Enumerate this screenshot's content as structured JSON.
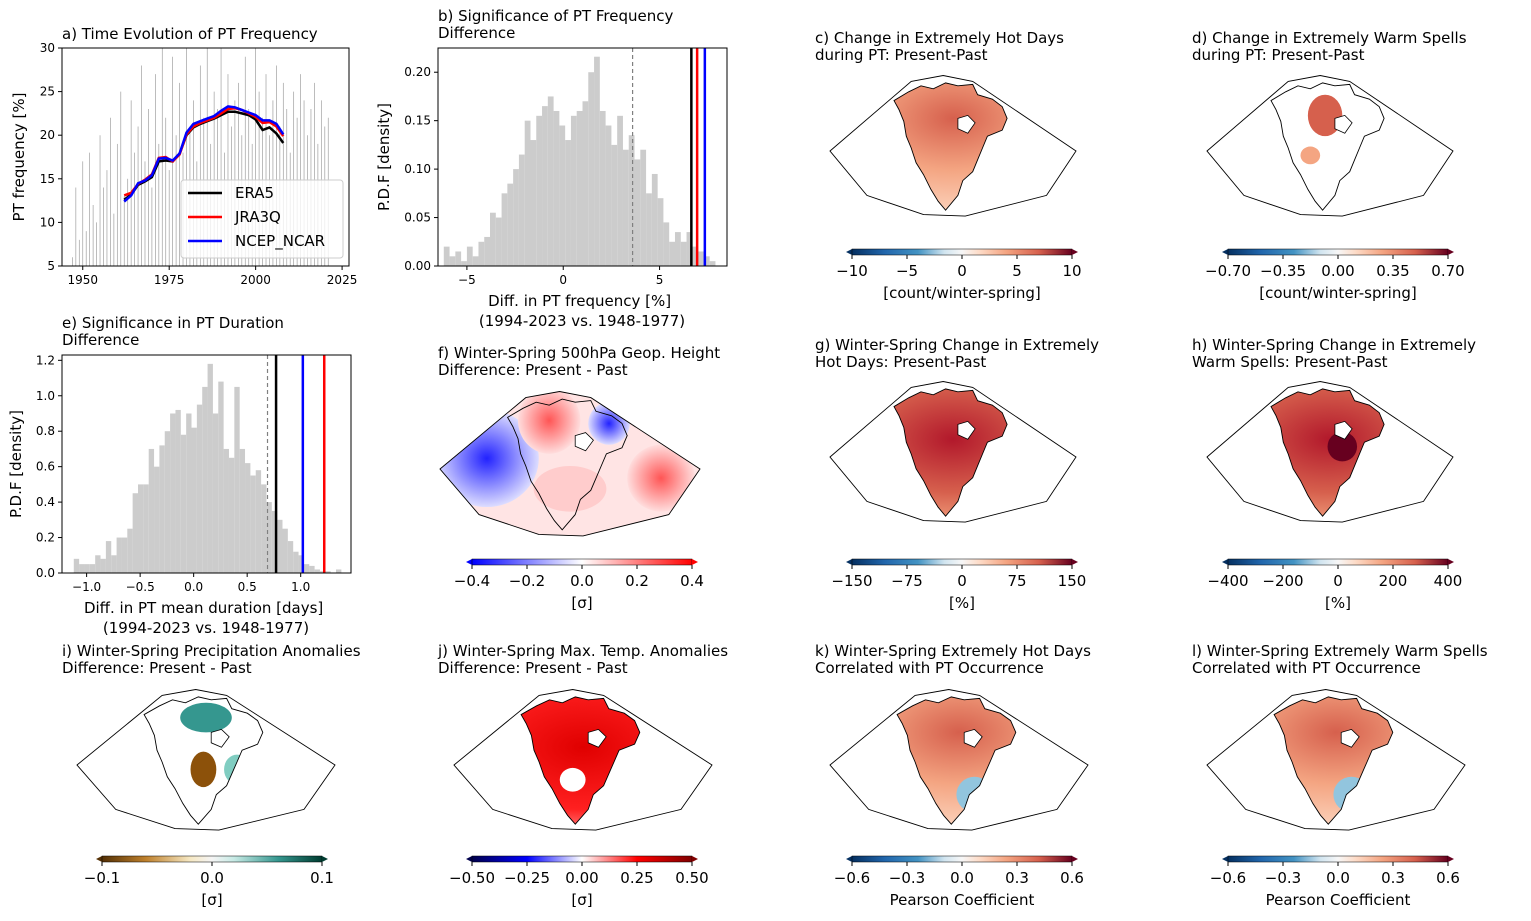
{
  "colors": {
    "ERA5": "#000000",
    "JRA3Q": "#ff0000",
    "NCEP_NCAR": "#0000ff",
    "histogram": "#cccccc",
    "threshold": "#808080",
    "spikes": "#a0a0a0"
  },
  "panel_a": {
    "title": "a) Time Evolution of PT Frequency",
    "ylabel": "PT frequency [%]",
    "xticks": [
      "1950",
      "1975",
      "2000",
      "2025"
    ],
    "yticks": [
      "5",
      "10",
      "15",
      "20",
      "25",
      "30"
    ],
    "legend": [
      "ERA5",
      "JRA3Q",
      "NCEP_NCAR"
    ]
  },
  "panel_b": {
    "title": "b) Significance of PT Frequency\nDifference",
    "ylabel": "P.D.F [density]",
    "xlabel": "Diff. in PT frequency [%]\n(1994-2023 vs. 1948-1977)",
    "xticks": [
      "−5",
      "0",
      "5"
    ],
    "yticks": [
      "0.00",
      "0.05",
      "0.10",
      "0.15",
      "0.20"
    ]
  },
  "panel_c": {
    "title": "c) Change in Extremely Hot Days\nduring PT: Present-Past",
    "cb_ticks": [
      "−10",
      "−5",
      "0",
      "5",
      "10"
    ],
    "cb_label": "[count/winter-spring]"
  },
  "panel_d": {
    "title": "d) Change in Extremely Warm Spells\nduring PT: Present-Past",
    "cb_ticks": [
      "−0.70",
      "−0.35",
      "0.00",
      "0.35",
      "0.70"
    ],
    "cb_label": "[count/winter-spring]"
  },
  "panel_e": {
    "title": "e) Significance in PT Duration\nDifference",
    "ylabel": "P.D.F [density]",
    "xlabel": "Diff. in PT mean duration [days]\n(1994-2023 vs. 1948-1977)",
    "xticks": [
      "−1.0",
      "−0.5",
      "0.0",
      "0.5",
      "1.0"
    ],
    "yticks": [
      "0.0",
      "0.2",
      "0.4",
      "0.6",
      "0.8",
      "1.0",
      "1.2"
    ]
  },
  "panel_f": {
    "title": "f) Winter-Spring 500hPa Geop. Height\nDifference: Present - Past",
    "cb_ticks": [
      "−0.4",
      "−0.2",
      "0.0",
      "0.2",
      "0.4"
    ],
    "cb_label": "[σ]"
  },
  "panel_g": {
    "title": "g) Winter-Spring Change in Extremely\nHot Days: Present-Past",
    "cb_ticks": [
      "−150",
      "−75",
      "0",
      "75",
      "150"
    ],
    "cb_label": "[%]"
  },
  "panel_h": {
    "title": "h) Winter-Spring Change in Extremely\nWarm Spells: Present-Past",
    "cb_ticks": [
      "−400",
      "−200",
      "0",
      "200",
      "400"
    ],
    "cb_label": "[%]"
  },
  "panel_i": {
    "title": "i) Winter-Spring Precipitation Anomalies\nDifference: Present - Past",
    "cb_ticks": [
      "−0.1",
      "0.0",
      "0.1"
    ],
    "cb_label": "[σ]"
  },
  "panel_j": {
    "title": "j) Winter-Spring Max. Temp. Anomalies\nDifference: Present - Past",
    "cb_ticks": [
      "−0.50",
      "−0.25",
      "0.00",
      "0.25",
      "0.50"
    ],
    "cb_label": "[σ]"
  },
  "panel_k": {
    "title": "k) Winter-Spring Extremely Hot Days\nCorrelated with PT Occurrence",
    "cb_ticks": [
      "−0.6",
      "−0.3",
      "0.0",
      "0.3",
      "0.6"
    ],
    "cb_label": "Pearson Coefficient"
  },
  "panel_l": {
    "title": "l) Winter-Spring Extremely Warm Spells\nCorrelated with PT Occurrence",
    "cb_ticks": [
      "−0.6",
      "−0.3",
      "0.0",
      "0.3",
      "0.6"
    ],
    "cb_label": "Pearson Coefficient"
  },
  "chart_data": [
    {
      "type": "line",
      "title": "a) Time Evolution of PT Frequency",
      "ylabel": "PT frequency [%]",
      "xlim": [
        1944,
        2027
      ],
      "ylim": [
        5,
        30
      ],
      "legend_loc": "lower right",
      "x": [
        1962,
        1964,
        1966,
        1968,
        1970,
        1972,
        1974,
        1976,
        1978,
        1980,
        1982,
        1984,
        1986,
        1988,
        1990,
        1992,
        1994,
        1996,
        1998,
        2000,
        2002,
        2004,
        2006,
        2008
      ],
      "series": [
        {
          "name": "ERA5",
          "values": [
            12.6,
            13.2,
            14.3,
            14.7,
            15.2,
            17.0,
            17.1,
            17.0,
            17.9,
            20.0,
            20.9,
            21.3,
            21.6,
            21.9,
            22.3,
            22.7,
            22.7,
            22.5,
            22.3,
            21.8,
            20.6,
            20.9,
            20.2,
            19.1
          ]
        },
        {
          "name": "JRA3Q",
          "values": [
            13.1,
            13.4,
            14.4,
            14.9,
            15.5,
            17.4,
            17.5,
            17.0,
            17.8,
            20.1,
            21.0,
            21.4,
            21.7,
            22.0,
            22.5,
            23.0,
            23.1,
            22.9,
            22.5,
            22.1,
            21.4,
            21.5,
            21.0,
            19.9
          ]
        },
        {
          "name": "NCEP_NCAR",
          "values": [
            12.4,
            13.1,
            14.5,
            14.8,
            15.4,
            17.3,
            17.4,
            17.1,
            17.9,
            20.3,
            21.3,
            21.6,
            21.9,
            22.2,
            22.8,
            23.3,
            23.2,
            22.9,
            22.6,
            22.3,
            21.7,
            21.7,
            21.3,
            20.1
          ]
        }
      ]
    },
    {
      "type": "bar",
      "title": "b) Significance of PT Frequency Difference",
      "xlabel": "Diff. in PT frequency [%] (1994-2023 vs. 1948-1977)",
      "ylabel": "P.D.F [density]",
      "xlim": [
        -6.5,
        8.5
      ],
      "ylim": [
        0,
        0.225
      ],
      "bin_start": -6.2,
      "bin_width": 0.3,
      "values": [
        0.02,
        0.01,
        0.015,
        0.005,
        0.02,
        0.01,
        0.025,
        0.03,
        0.055,
        0.05,
        0.075,
        0.085,
        0.1,
        0.115,
        0.15,
        0.13,
        0.155,
        0.165,
        0.175,
        0.16,
        0.145,
        0.13,
        0.155,
        0.16,
        0.17,
        0.2,
        0.216,
        0.16,
        0.145,
        0.125,
        0.155,
        0.12,
        0.135,
        0.11,
        0.12,
        0.075,
        0.095,
        0.07,
        0.045,
        0.025,
        0.035,
        0.025,
        0.035,
        0.02,
        0.015,
        0.01,
        0.005,
        0.0,
        0.0,
        0.0,
        0.0,
        0.0,
        0.0,
        0.003,
        0.0,
        0.0,
        0.0,
        0.007
      ],
      "vlines": [
        {
          "name": "threshold",
          "x": 3.6
        },
        {
          "name": "ERA5",
          "x": 6.65
        },
        {
          "name": "JRA3Q",
          "x": 6.95
        },
        {
          "name": "NCEP_NCAR",
          "x": 7.35
        }
      ]
    },
    {
      "type": "bar",
      "title": "e) Significance in PT Duration Difference",
      "xlabel": "Diff. in PT mean duration [days] (1994-2023 vs. 1948-1977)",
      "ylabel": "P.D.F [density]",
      "xlim": [
        -1.23,
        1.47
      ],
      "ylim": [
        0,
        1.23
      ],
      "bin_start": -1.12,
      "bin_width": 0.05,
      "values": [
        0.08,
        0.05,
        0.05,
        0.05,
        0.1,
        0.08,
        0.18,
        0.1,
        0.2,
        0.2,
        0.25,
        0.45,
        0.5,
        0.5,
        0.7,
        0.6,
        0.72,
        0.8,
        0.9,
        0.92,
        0.78,
        0.9,
        0.82,
        0.95,
        1.05,
        1.18,
        0.9,
        1.08,
        0.7,
        0.65,
        1.05,
        0.7,
        0.62,
        0.55,
        0.58,
        0.5,
        0.4,
        0.35,
        0.3,
        0.25,
        0.18,
        0.12,
        0.1,
        0.05,
        0.04,
        0.02,
        0.01,
        0.01,
        0.0,
        0.02
      ],
      "vlines": [
        {
          "name": "threshold",
          "x": 0.69
        },
        {
          "name": "ERA5",
          "x": 0.77
        },
        {
          "name": "NCEP_NCAR",
          "x": 1.02
        },
        {
          "name": "JRA3Q",
          "x": 1.22
        }
      ]
    },
    {
      "type": "heatmap",
      "title": "c) Change in Extremely Hot Days during PT: Present-Past",
      "colorbar": {
        "range": [
          -10,
          10
        ],
        "cmap": "RdBu_r",
        "label": "[count/winter-spring]"
      }
    },
    {
      "type": "heatmap",
      "title": "d) Change in Extremely Warm Spells during PT: Present-Past",
      "colorbar": {
        "range": [
          -0.7,
          0.7
        ],
        "cmap": "RdBu_r",
        "label": "[count/winter-spring]"
      }
    },
    {
      "type": "heatmap",
      "title": "f) Winter-Spring 500hPa Geop. Height Difference: Present - Past",
      "colorbar": {
        "range": [
          -0.4,
          0.4
        ],
        "cmap": "bwr",
        "label": "[σ]"
      }
    },
    {
      "type": "heatmap",
      "title": "g) Winter-Spring Change in Extremely Hot Days: Present-Past",
      "colorbar": {
        "range": [
          -150,
          150
        ],
        "cmap": "RdBu_r",
        "label": "[%]"
      }
    },
    {
      "type": "heatmap",
      "title": "h) Winter-Spring Change in Extremely Warm Spells: Present-Past",
      "colorbar": {
        "range": [
          -400,
          400
        ],
        "cmap": "RdBu_r",
        "label": "[%]"
      }
    },
    {
      "type": "heatmap",
      "title": "i) Winter-Spring Precipitation Anomalies Difference: Present - Past",
      "colorbar": {
        "range": [
          -0.1,
          0.1
        ],
        "cmap": "BrBG",
        "label": "[σ]"
      }
    },
    {
      "type": "heatmap",
      "title": "j) Winter-Spring Max. Temp. Anomalies Difference: Present - Past",
      "colorbar": {
        "range": [
          -0.5,
          0.5
        ],
        "cmap": "seismic",
        "label": "[σ]"
      }
    },
    {
      "type": "heatmap",
      "title": "k) Winter-Spring Extremely Hot Days Correlated with PT Occurrence",
      "colorbar": {
        "range": [
          -0.6,
          0.6
        ],
        "cmap": "RdBu_r",
        "label": "Pearson Coefficient"
      }
    },
    {
      "type": "heatmap",
      "title": "l) Winter-Spring Extremely Warm Spells Correlated with PT Occurrence",
      "colorbar": {
        "range": [
          -0.6,
          0.6
        ],
        "cmap": "RdBu_r",
        "label": "Pearson Coefficient"
      }
    }
  ]
}
